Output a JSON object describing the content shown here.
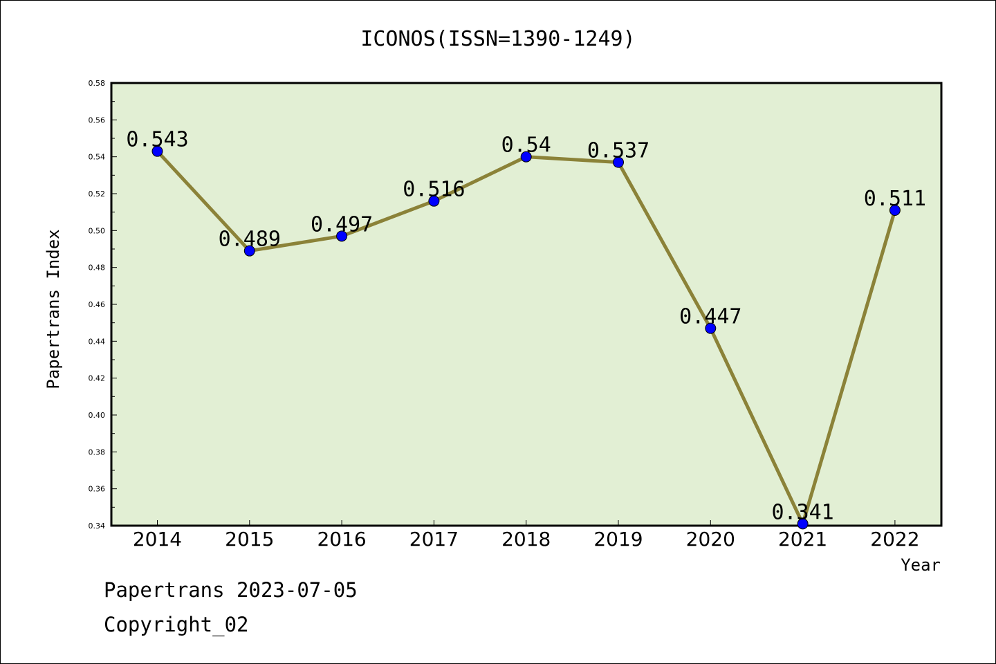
{
  "chart_data": {
    "type": "line",
    "title": "ICONOS(ISSN=1390-1249)",
    "xlabel": "Year",
    "ylabel": "Papertrans Index",
    "categories": [
      "2014",
      "2015",
      "2016",
      "2017",
      "2018",
      "2019",
      "2020",
      "2021",
      "2022"
    ],
    "series": [
      {
        "values": [
          0.543,
          0.489,
          0.497,
          0.516,
          0.54,
          0.537,
          0.447,
          0.341,
          0.511
        ],
        "labels": [
          "0.543",
          "0.489",
          "0.497",
          "0.516",
          "0.54",
          "0.537",
          "0.447",
          "0.341",
          "0.511"
        ],
        "line_color": "#8b8238",
        "marker_color": "#0000ff"
      }
    ],
    "ylim": [
      0.34,
      0.58
    ],
    "yticks": [
      "0.34",
      "0.36",
      "0.38",
      "0.40",
      "0.42",
      "0.44",
      "0.46",
      "0.48",
      "0.50",
      "0.52",
      "0.54",
      "0.56",
      "0.58"
    ],
    "grid": false,
    "plot_background": "#e2efd4"
  },
  "footer": {
    "line1": "Papertrans 2023-07-05",
    "line2": "Copyright_02"
  }
}
